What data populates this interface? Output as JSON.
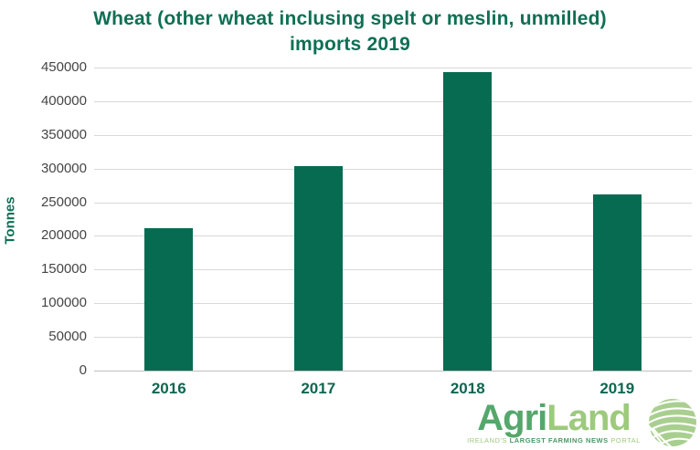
{
  "title": {
    "line1": "Wheat (other wheat inclusing spelt or meslin, unmilled)",
    "line2": "imports 2019",
    "color": "#0e6f54"
  },
  "chart_data": {
    "type": "bar",
    "title": "Wheat (other wheat inclusing spelt or meslin, unmilled) imports 2019",
    "categories": [
      "2016",
      "2017",
      "2018",
      "2019"
    ],
    "values": [
      211000,
      304000,
      443000,
      261000
    ],
    "xlabel": "",
    "ylabel": "Tonnes",
    "ylim": [
      0,
      450000
    ],
    "ytick_step": 50000,
    "yticks": [
      0,
      50000,
      100000,
      150000,
      200000,
      250000,
      300000,
      350000,
      400000,
      450000
    ],
    "grid": "horizontal-only",
    "legend": "none",
    "colors": {
      "bar": "#076b51",
      "y_tick_label": "#454545",
      "x_tick_label": "#0f6650",
      "y_axis_title": "#0e6f54",
      "gridline": "#d9d9d9",
      "zero_axis_line": "#bfbfbf"
    }
  },
  "logo": {
    "brand_part1": "Agri",
    "brand_part2": "Land",
    "brand_part1_color": "#55a76c",
    "brand_part2_color": "#9dca7d",
    "tagline_part1": "IRELAND'S ",
    "tagline_part2": "LARGEST FARMING NEWS",
    "tagline_part3": " PORTAL",
    "tagline_light_color": "#9dca7d",
    "tagline_bold_color": "#4a9768",
    "icon_name": "agriland-globe-icon",
    "icon_color": "#a9cf90"
  }
}
